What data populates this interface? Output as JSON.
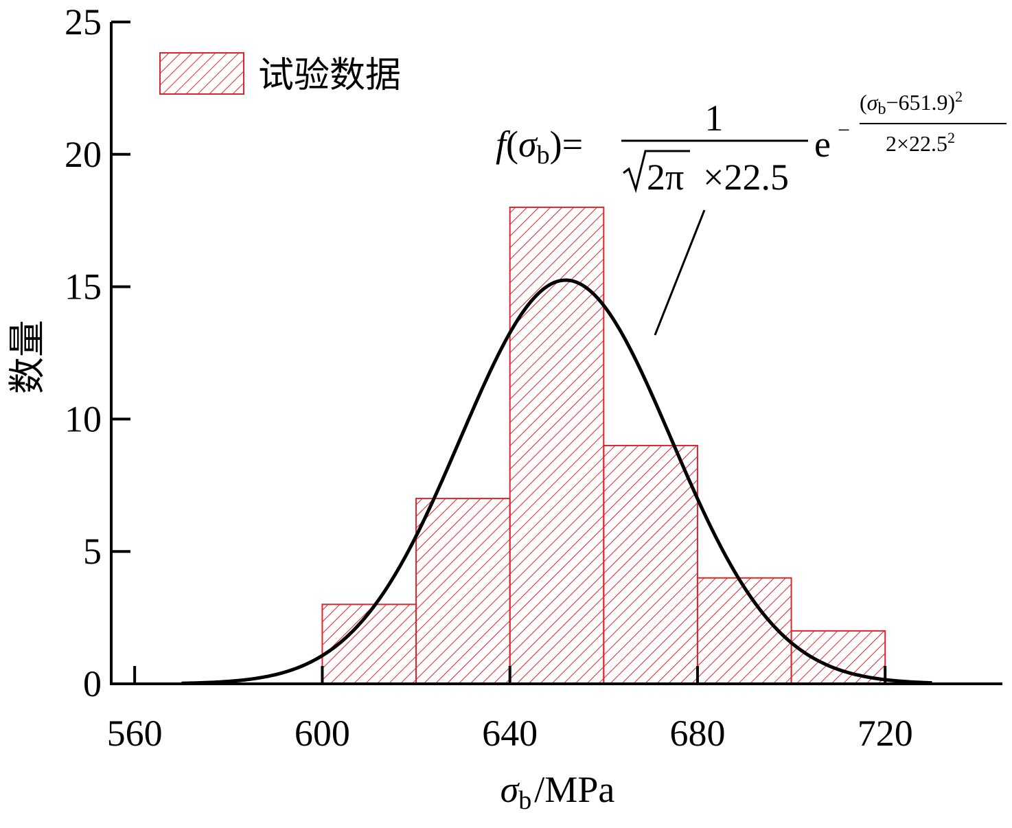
{
  "chart_data": {
    "type": "bar",
    "xlabel_symbol": "σ",
    "xlabel_sub": "b",
    "xlabel_unit": "/MPa",
    "ylabel": "数量",
    "xlim": [
      555,
      745
    ],
    "ylim": [
      0,
      25
    ],
    "x_ticks": [
      560,
      600,
      640,
      680,
      720
    ],
    "y_ticks": [
      0,
      5,
      10,
      15,
      20,
      25
    ],
    "bins": [
      {
        "from": 600,
        "to": 620,
        "value": 3
      },
      {
        "from": 620,
        "to": 640,
        "value": 7
      },
      {
        "from": 640,
        "to": 660,
        "value": 18
      },
      {
        "from": 660,
        "to": 680,
        "value": 9
      },
      {
        "from": 680,
        "to": 700,
        "value": 4
      },
      {
        "from": 700,
        "to": 720,
        "value": 2
      }
    ],
    "series": [
      {
        "name": "试验数据",
        "kind": "histogram"
      },
      {
        "kind": "normal-fit-curve",
        "mean": 651.9,
        "std": 22.5,
        "n": 43,
        "bin_width": 20,
        "x_range": [
          570,
          730
        ]
      }
    ],
    "legend": {
      "label": "试验数据",
      "position": "top-left"
    },
    "formula": {
      "lhs_f": "f",
      "lhs_open": "(",
      "sigma": "σ",
      "sub_b": "b",
      "lhs_close": ")",
      "equals": "=",
      "numerator": "1",
      "sqrt_content": "2π",
      "times_std": "×22.5",
      "e": "e",
      "minus": "−",
      "exp_num_open": "(",
      "exp_num_rest": "−651.9)",
      "exp_num_power": "2",
      "exp_den": "2×22.5",
      "exp_den_power": "2"
    },
    "colors": {
      "bar": "#e0242b",
      "curve": "#000000",
      "axis": "#000000"
    }
  }
}
